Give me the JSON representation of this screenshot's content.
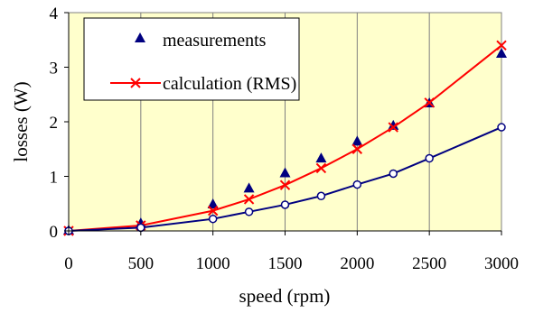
{
  "chart_data": {
    "type": "line",
    "xlabel": "speed (rpm)",
    "ylabel": "losses (W)",
    "xlim": [
      0,
      3000
    ],
    "ylim": [
      0,
      4
    ],
    "x_ticks": [
      "0",
      "500",
      "1000",
      "1500",
      "2000",
      "2500",
      "3000"
    ],
    "y_ticks": [
      "0",
      "1",
      "2",
      "3",
      "4"
    ],
    "grid": "vertical",
    "legend_position": "top-left",
    "plot_background": "#ffffcc",
    "series": [
      {
        "name": "measurements",
        "marker": "triangle",
        "line": false,
        "color": "#000080",
        "x": [
          0,
          500,
          1000,
          1250,
          1500,
          1750,
          2000,
          2250,
          2500,
          3000
        ],
        "y": [
          0.0,
          0.13,
          0.48,
          0.77,
          1.05,
          1.32,
          1.63,
          1.92,
          2.33,
          3.24
        ]
      },
      {
        "name": "calculation (RMS)",
        "marker": "x",
        "line": true,
        "color": "#ff0000",
        "x": [
          0,
          500,
          1000,
          1250,
          1500,
          1750,
          2000,
          2250,
          2500,
          3000
        ],
        "y": [
          0.0,
          0.1,
          0.37,
          0.58,
          0.84,
          1.15,
          1.5,
          1.9,
          2.35,
          3.4
        ]
      },
      {
        "marker": "circle",
        "line": true,
        "color": "#000080",
        "x": [
          0,
          500,
          1000,
          1250,
          1500,
          1750,
          2000,
          2250,
          2500,
          3000
        ],
        "y": [
          0.0,
          0.06,
          0.22,
          0.35,
          0.48,
          0.64,
          0.85,
          1.05,
          1.33,
          1.9
        ]
      }
    ]
  }
}
